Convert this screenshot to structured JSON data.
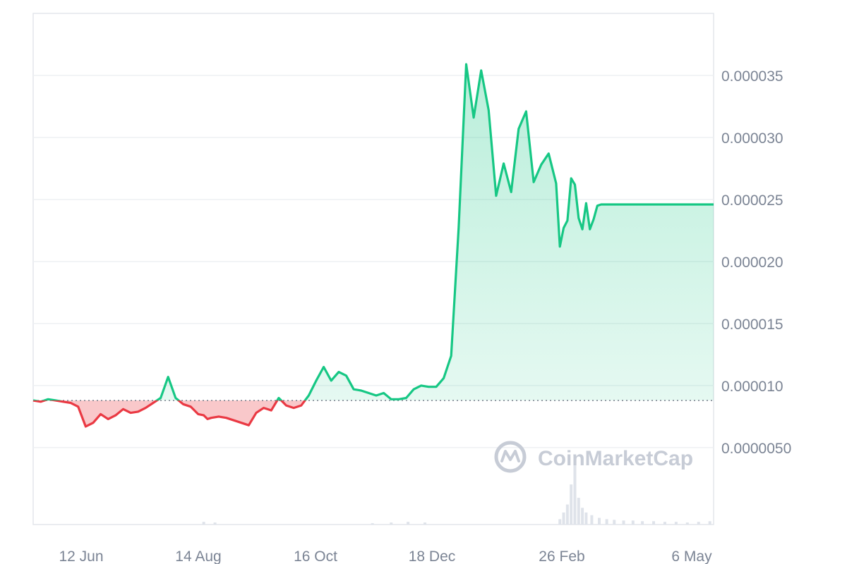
{
  "chart_data": {
    "type": "area",
    "title": "",
    "xlabel": "",
    "ylabel": "",
    "x_tick_labels": [
      "12 Jun",
      "14 Aug",
      "16 Oct",
      "18 Dec",
      "26 Feb",
      "6 May"
    ],
    "y_tick_labels": [
      "0.0000050",
      "0.000010",
      "0.000015",
      "0.000020",
      "0.000025",
      "0.000030",
      "0.000035"
    ],
    "y_ticks": [
      5e-06,
      1e-05,
      1.5e-05,
      2e-05,
      2.5e-05,
      3e-05,
      3.5e-05
    ],
    "ylim": [
      -1.2e-06,
      4e-05
    ],
    "baseline_value": 8.8e-06,
    "grid": true,
    "legend": "none",
    "colors": {
      "up_line": "#16c784",
      "down_line": "#ea3943",
      "up_fill": "#16c784",
      "down_fill": "#ea3943",
      "grid": "#eef0f3",
      "volume": "#dfe3ea"
    },
    "watermark": "CoinMarketCap",
    "x_domain": [
      "2023-05-15",
      "2024-05-12"
    ],
    "series": [
      {
        "x": [
          "2023-05-15",
          "2023-05-19",
          "2023-05-23",
          "2023-05-27",
          "2023-05-31",
          "2023-06-04",
          "2023-06-08",
          "2023-06-12",
          "2023-06-16",
          "2023-06-20",
          "2023-06-24",
          "2023-06-28",
          "2023-07-02",
          "2023-07-06",
          "2023-07-10",
          "2023-07-14",
          "2023-07-18",
          "2023-07-22",
          "2023-07-26",
          "2023-07-30",
          "2023-08-03",
          "2023-08-07",
          "2023-08-11",
          "2023-08-14",
          "2023-08-16",
          "2023-08-18",
          "2023-08-22",
          "2023-08-26",
          "2023-08-30",
          "2023-09-03",
          "2023-09-07",
          "2023-09-11",
          "2023-09-15",
          "2023-09-19",
          "2023-09-23",
          "2023-09-27",
          "2023-10-01",
          "2023-10-05",
          "2023-10-09",
          "2023-10-13",
          "2023-10-17",
          "2023-10-21",
          "2023-10-25",
          "2023-10-29",
          "2023-11-02",
          "2023-11-06",
          "2023-11-10",
          "2023-11-14",
          "2023-11-18",
          "2023-11-22",
          "2023-11-26",
          "2023-11-30",
          "2023-12-04",
          "2023-12-08",
          "2023-12-12",
          "2023-12-16",
          "2023-12-20",
          "2023-12-24",
          "2023-12-28",
          "2024-01-01",
          "2024-01-05",
          "2024-01-09",
          "2024-01-13",
          "2024-01-17",
          "2024-01-21",
          "2024-01-25",
          "2024-01-29",
          "2024-02-02",
          "2024-02-06",
          "2024-02-10",
          "2024-02-14",
          "2024-02-18",
          "2024-02-20",
          "2024-02-22",
          "2024-02-24",
          "2024-02-26",
          "2024-02-28",
          "2024-03-01",
          "2024-03-03",
          "2024-03-05",
          "2024-03-07",
          "2024-03-09",
          "2024-03-11",
          "2024-03-13",
          "2024-03-15",
          "2024-03-17",
          "2024-03-19",
          "2024-03-21",
          "2024-03-23",
          "2024-03-25",
          "2024-03-27",
          "2024-03-29",
          "2024-03-31",
          "2024-04-02",
          "2024-04-04",
          "2024-04-06",
          "2024-04-08",
          "2024-04-10",
          "2024-04-12",
          "2024-04-14",
          "2024-04-16",
          "2024-04-18",
          "2024-04-20",
          "2024-04-22",
          "2024-04-24",
          "2024-04-26",
          "2024-04-28",
          "2024-04-30",
          "2024-05-02",
          "2024-05-04",
          "2024-05-06",
          "2024-05-08",
          "2024-05-10",
          "2024-05-12"
        ],
        "values": [
          8.8e-06,
          8.7e-06,
          8.9e-06,
          8.8e-06,
          8.7e-06,
          8.6e-06,
          8.3e-06,
          6.7e-06,
          7e-06,
          7.7e-06,
          7.3e-06,
          7.6e-06,
          8.1e-06,
          7.8e-06,
          7.9e-06,
          8.2e-06,
          8.6e-06,
          9e-06,
          1.07e-05,
          9e-06,
          8.5e-06,
          8.3e-06,
          7.7e-06,
          7.6e-06,
          7.3e-06,
          7.4e-06,
          7.5e-06,
          7.4e-06,
          7.2e-06,
          7e-06,
          6.8e-06,
          7.8e-06,
          8.2e-06,
          8e-06,
          9e-06,
          8.4e-06,
          8.2e-06,
          8.4e-06,
          9.2e-06,
          1.04e-05,
          1.15e-05,
          1.04e-05,
          1.11e-05,
          1.08e-05,
          9.7e-06,
          9.6e-06,
          9.4e-06,
          9.2e-06,
          9.4e-06,
          8.9e-06,
          8.9e-06,
          9e-06,
          9.7e-06,
          1e-05,
          9.9e-06,
          9.9e-06,
          1.06e-05,
          1.24e-05,
          2.27e-05,
          3.59e-05,
          3.16e-05,
          3.54e-05,
          3.22e-05,
          2.53e-05,
          2.79e-05,
          2.56e-05,
          3.07e-05,
          3.21e-05,
          2.64e-05,
          2.78e-05,
          2.87e-05,
          2.63e-05,
          2.12e-05,
          2.27e-05,
          2.33e-05,
          2.67e-05,
          2.62e-05,
          2.35e-05,
          2.26e-05,
          2.47e-05,
          2.26e-05,
          2.34e-05,
          2.45e-05,
          2.46e-05,
          2.46e-05,
          2.46e-05,
          2.46e-05,
          2.46e-05,
          2.46e-05,
          2.46e-05,
          2.46e-05,
          2.46e-05,
          2.46e-05,
          2.46e-05,
          2.46e-05,
          2.46e-05,
          2.46e-05,
          2.46e-05,
          2.46e-05,
          2.46e-05,
          2.46e-05,
          2.46e-05,
          2.46e-05,
          2.46e-05,
          2.46e-05,
          2.46e-05,
          2.46e-05,
          2.46e-05,
          2.46e-05,
          2.46e-05,
          2.46e-05,
          2.46e-05,
          2.46e-05,
          2.46e-05
        ]
      }
    ],
    "volume": {
      "x": [
        "2023-08-14",
        "2023-08-20",
        "2023-11-12",
        "2023-11-22",
        "2023-12-01",
        "2023-12-10",
        "2024-02-20",
        "2024-02-22",
        "2024-02-24",
        "2024-02-26",
        "2024-02-28",
        "2024-03-01",
        "2024-03-03",
        "2024-03-05",
        "2024-03-08",
        "2024-03-12",
        "2024-03-16",
        "2024-03-20",
        "2024-03-25",
        "2024-03-30",
        "2024-04-04",
        "2024-04-10",
        "2024-04-16",
        "2024-04-22",
        "2024-04-28",
        "2024-05-04",
        "2024-05-10"
      ],
      "values": [
        4,
        3,
        2,
        3,
        4,
        3,
        8,
        18,
        30,
        60,
        95,
        40,
        25,
        18,
        14,
        10,
        8,
        7,
        6,
        6,
        5,
        5,
        4,
        4,
        3,
        4,
        5
      ]
    }
  }
}
